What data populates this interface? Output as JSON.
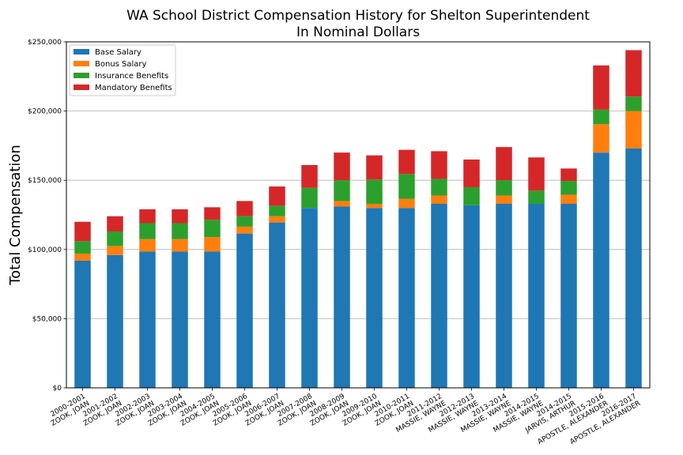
{
  "chart_data": {
    "type": "bar",
    "stacked": true,
    "title": "WA School District Compensation History for Shelton Superintendent",
    "subtitle": "In Nominal Dollars",
    "xlabel": "",
    "ylabel": "Total Compensation",
    "ylim": [
      0,
      250000
    ],
    "yticks": [
      0,
      50000,
      100000,
      150000,
      200000,
      250000
    ],
    "ytick_labels": [
      "$0",
      "$50,000",
      "$100,000",
      "$150,000",
      "$200,000",
      "$250,000"
    ],
    "grid": "horizontal",
    "legend_position": "top-left",
    "categories": [
      [
        "2000-2001",
        "ZOOK, JOAN"
      ],
      [
        "2001-2002",
        "ZOOK, JOAN"
      ],
      [
        "2002-2003",
        "ZOOK, JOAN"
      ],
      [
        "2003-2004",
        "ZOOK, JOAN"
      ],
      [
        "2004-2005",
        "ZOOK, JOAN"
      ],
      [
        "2005-2006",
        "ZOOK, JOAN"
      ],
      [
        "2006-2007",
        "ZOOK, JOAN"
      ],
      [
        "2007-2008",
        "ZOOK, JOAN"
      ],
      [
        "2008-2009",
        "ZOOK, JOAN"
      ],
      [
        "2009-2010",
        "ZOOK, JOAN"
      ],
      [
        "2010-2011",
        "ZOOK, JOAN"
      ],
      [
        "2011-2012",
        "MASSIE, WAYNE"
      ],
      [
        "2012-2013",
        "MASSIE, WAYNE"
      ],
      [
        "2013-2014",
        "MASSIE, WAYNE"
      ],
      [
        "2014-2015",
        "MASSIE, WAYNE"
      ],
      [
        "2014-2015",
        "JARVIS, ARTHUR"
      ],
      [
        "2015-2016",
        "APOSTLE, ALEXANDER"
      ],
      [
        "2016-2017",
        "APOSTLE, ALEXANDER"
      ]
    ],
    "series": [
      {
        "name": "Base Salary",
        "color": "#1f77b4",
        "values": [
          92000,
          96000,
          98500,
          98500,
          98500,
          111500,
          119500,
          130000,
          131000,
          130000,
          130000,
          133000,
          132000,
          133000,
          133000,
          133000,
          170000,
          173000
        ]
      },
      {
        "name": "Bonus Salary",
        "color": "#ff7f0e",
        "values": [
          5000,
          6500,
          9000,
          9000,
          10500,
          5000,
          4500,
          0,
          4000,
          3000,
          6500,
          6000,
          0,
          6000,
          0,
          6500,
          20500,
          27000
        ]
      },
      {
        "name": "Insurance Benefits",
        "color": "#2ca02c",
        "values": [
          9000,
          10500,
          11500,
          11500,
          12500,
          7500,
          7500,
          14500,
          15000,
          17500,
          18000,
          12000,
          13000,
          11000,
          9500,
          10000,
          10500,
          10500
        ]
      },
      {
        "name": "Mandatory Benefits",
        "color": "#d62728",
        "values": [
          14000,
          11000,
          10000,
          10000,
          9000,
          11000,
          14000,
          16500,
          20000,
          17500,
          17500,
          20000,
          20000,
          24000,
          24000,
          9000,
          32000,
          33500
        ]
      }
    ]
  }
}
